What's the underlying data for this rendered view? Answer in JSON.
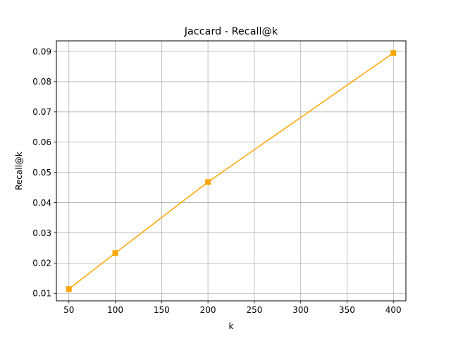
{
  "chart_data": {
    "type": "line",
    "title": "Jaccard - Recall@k",
    "xlabel": "k",
    "ylabel": "Recall@k",
    "x": [
      50,
      100,
      200,
      400
    ],
    "series": [
      {
        "values": [
          0.0114,
          0.0233,
          0.0468,
          0.0895
        ],
        "color": "#ffa500",
        "marker": "square"
      }
    ],
    "xlim": [
      36.5,
      413.5
    ],
    "ylim": [
      0.0075,
      0.0935
    ],
    "xticks": [
      50,
      100,
      150,
      200,
      250,
      300,
      350,
      400
    ],
    "yticks": [
      0.01,
      0.02,
      0.03,
      0.04,
      0.05,
      0.06,
      0.07,
      0.08,
      0.09
    ],
    "ytick_labels": [
      "0.01",
      "0.02",
      "0.03",
      "0.04",
      "0.05",
      "0.06",
      "0.07",
      "0.08",
      "0.09"
    ],
    "grid": true,
    "grid_color": "#b0b0b0",
    "legend": false
  }
}
